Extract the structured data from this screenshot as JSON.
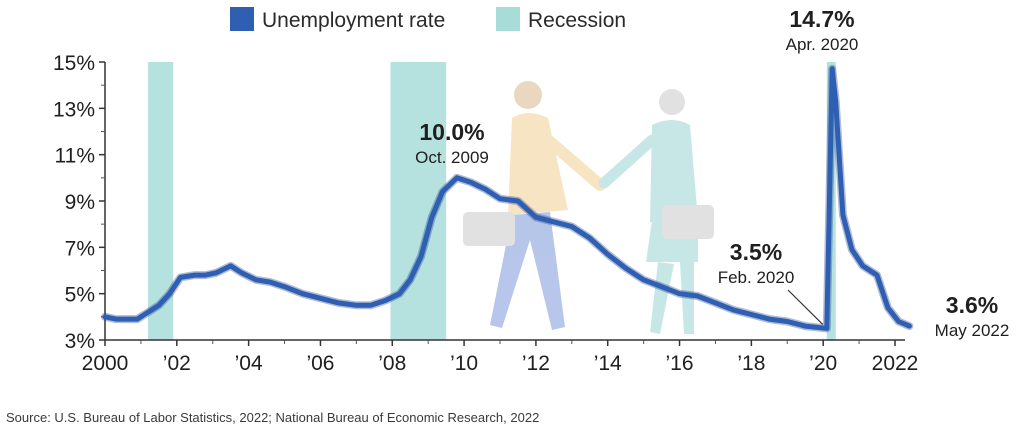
{
  "chart_data": {
    "type": "line",
    "legend": {
      "placement": "top-center",
      "items": [
        {
          "label": "Unemployment rate",
          "color": "#2f5fb3",
          "kind": "line"
        },
        {
          "label": "Recession",
          "color": "#a8dcd9",
          "kind": "band"
        }
      ]
    },
    "xlim": [
      2000,
      2022.8
    ],
    "ylim": [
      3,
      15
    ],
    "y_ticks": [
      {
        "value": 3,
        "label": "3%"
      },
      {
        "value": 5,
        "label": "5%"
      },
      {
        "value": 7,
        "label": "7%"
      },
      {
        "value": 9,
        "label": "9%"
      },
      {
        "value": 11,
        "label": "11%"
      },
      {
        "value": 13,
        "label": "13%"
      },
      {
        "value": 15,
        "label": "15%"
      }
    ],
    "x_ticks": [
      {
        "value": 2000,
        "label": "2000"
      },
      {
        "value": 2002,
        "label": "’02"
      },
      {
        "value": 2004,
        "label": "’04"
      },
      {
        "value": 2006,
        "label": "’06"
      },
      {
        "value": 2008,
        "label": "’08"
      },
      {
        "value": 2010,
        "label": "’10"
      },
      {
        "value": 2012,
        "label": "’12"
      },
      {
        "value": 2014,
        "label": "’14"
      },
      {
        "value": 2016,
        "label": "’16"
      },
      {
        "value": 2018,
        "label": "’18"
      },
      {
        "value": 2020,
        "label": "’20"
      },
      {
        "value": 2022,
        "label": "2022"
      }
    ],
    "recessions": [
      {
        "start": 2001.2,
        "end": 2001.9
      },
      {
        "start": 2007.95,
        "end": 2009.5
      },
      {
        "start": 2020.1,
        "end": 2020.35
      }
    ],
    "series": [
      {
        "name": "Unemployment rate",
        "color": "#2f5fb3",
        "x": [
          2000.0,
          2000.3,
          2000.6,
          2000.9,
          2001.2,
          2001.5,
          2001.8,
          2002.1,
          2002.5,
          2002.8,
          2003.1,
          2003.5,
          2003.8,
          2004.2,
          2004.6,
          2005.0,
          2005.5,
          2006.0,
          2006.5,
          2007.0,
          2007.4,
          2007.8,
          2008.2,
          2008.5,
          2008.8,
          2009.1,
          2009.4,
          2009.8,
          2010.2,
          2010.6,
          2011.0,
          2011.5,
          2012.0,
          2012.5,
          2013.0,
          2013.5,
          2014.0,
          2014.5,
          2015.0,
          2015.5,
          2016.0,
          2016.5,
          2017.0,
          2017.5,
          2018.0,
          2018.5,
          2019.0,
          2019.5,
          2020.1,
          2020.25,
          2020.35,
          2020.55,
          2020.8,
          2021.1,
          2021.5,
          2021.8,
          2022.1,
          2022.4
        ],
        "y": [
          4.0,
          3.9,
          3.9,
          3.9,
          4.2,
          4.5,
          5.0,
          5.7,
          5.8,
          5.8,
          5.9,
          6.2,
          5.9,
          5.6,
          5.5,
          5.3,
          5.0,
          4.8,
          4.6,
          4.5,
          4.5,
          4.7,
          5.0,
          5.6,
          6.6,
          8.3,
          9.4,
          10.0,
          9.8,
          9.5,
          9.1,
          9.0,
          8.3,
          8.1,
          7.9,
          7.4,
          6.7,
          6.1,
          5.6,
          5.3,
          5.0,
          4.9,
          4.6,
          4.3,
          4.1,
          3.9,
          3.8,
          3.6,
          3.5,
          14.7,
          13.3,
          8.4,
          6.9,
          6.2,
          5.8,
          4.4,
          3.8,
          3.6
        ]
      }
    ],
    "annotations": [
      {
        "value": "10.0%",
        "date": "Oct. 2009",
        "x": 2009.8,
        "y": 10.0
      },
      {
        "value": "14.7%",
        "date": "Apr. 2020",
        "x": 2020.25,
        "y": 14.7
      },
      {
        "value": "3.5%",
        "date": "Feb. 2020",
        "x": 2020.1,
        "y": 3.5
      },
      {
        "value": "3.6%",
        "date": "May 2022",
        "x": 2022.4,
        "y": 3.6
      }
    ],
    "source": "Source: U.S. Bureau of Labor Statistics, 2022; National Bureau of Economic Research, 2022"
  }
}
